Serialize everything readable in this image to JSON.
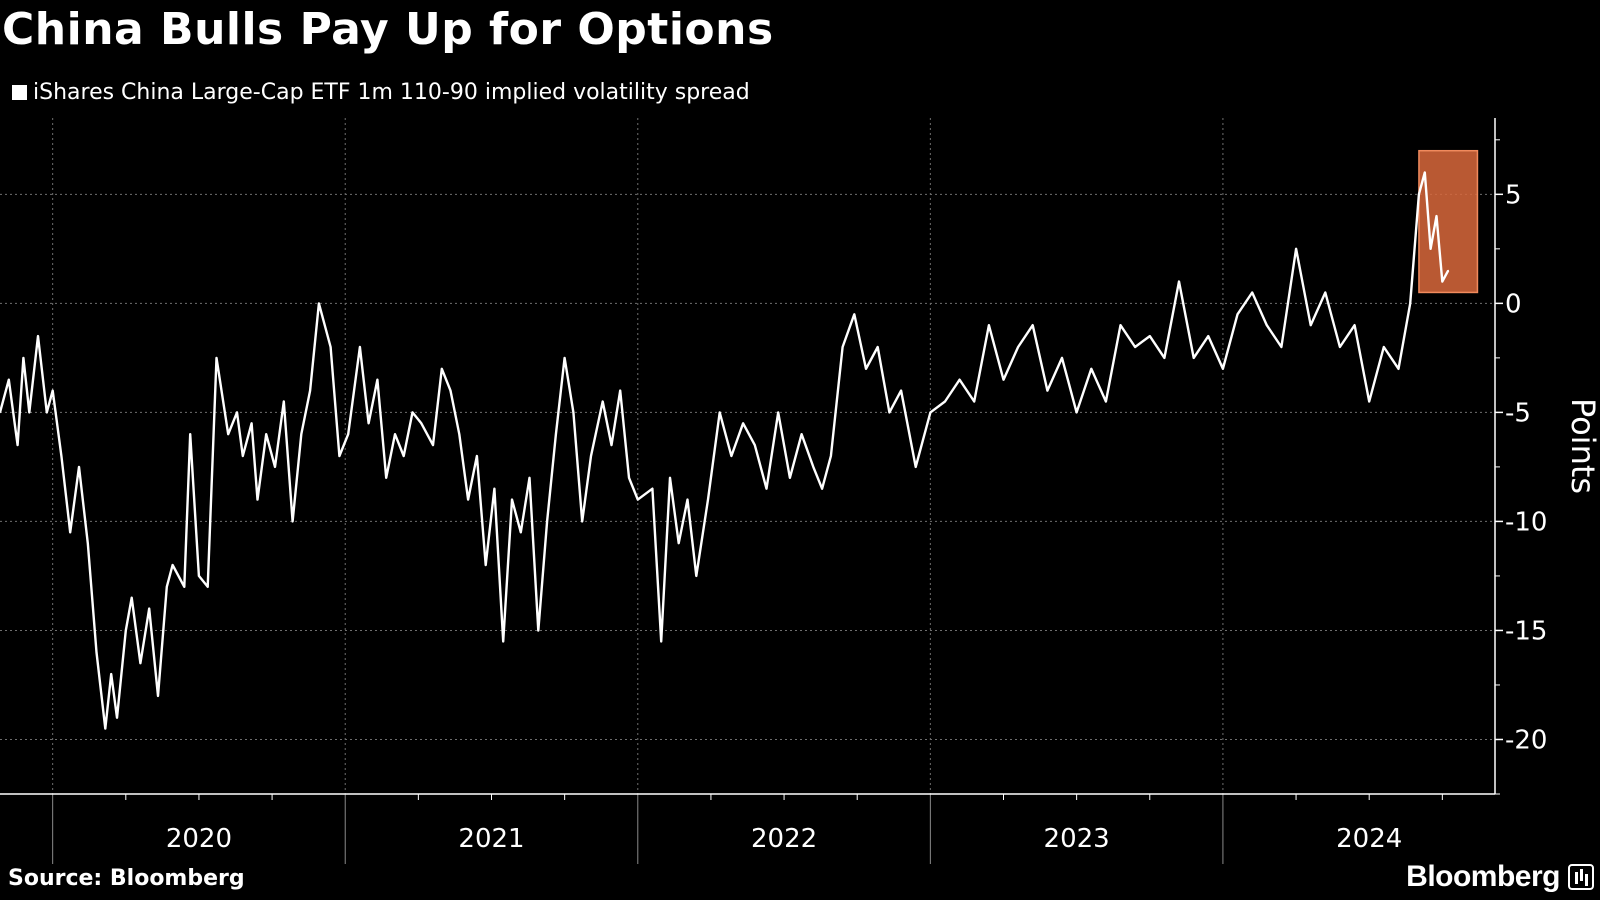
{
  "title": "China Bulls Pay Up for Options",
  "source": "Source: Bloomberg",
  "brand": "Bloomberg",
  "brand_icon": "bloomberg-terminal-icon",
  "colors": {
    "background": "#000000",
    "line": "#ffffff",
    "grid": "#6f6f6f",
    "highlight_fill": "#d9683c",
    "highlight_stroke": "#f08a5d"
  },
  "chart_data": {
    "type": "line",
    "title": "China Bulls Pay Up for Options",
    "ylabel": "Points",
    "xlabel": "",
    "ylim": [
      -22.5,
      8.5
    ],
    "yticks": [
      5,
      0,
      -5,
      -10,
      -15,
      -20
    ],
    "ytick_labels": [
      "5",
      "0",
      "-5",
      "-10",
      "-15",
      "-20"
    ],
    "xlim": [
      2019.82,
      2024.93
    ],
    "x_tick_labels": [
      "2020",
      "2021",
      "2022",
      "2023",
      "2024"
    ],
    "grid": true,
    "legend_position": "top-left",
    "highlight": {
      "x_range": [
        2024.67,
        2024.87
      ],
      "y_range": [
        0.5,
        7.0
      ]
    },
    "series": [
      {
        "name": "iShares China Large-Cap ETF 1m 110-90 implied volatility spread",
        "x": [
          2019.82,
          2019.85,
          2019.88,
          2019.9,
          2019.92,
          2019.95,
          2019.98,
          2020.0,
          2020.03,
          2020.06,
          2020.09,
          2020.12,
          2020.15,
          2020.18,
          2020.2,
          2020.22,
          2020.25,
          2020.27,
          2020.3,
          2020.33,
          2020.36,
          2020.39,
          2020.41,
          2020.45,
          2020.47,
          2020.5,
          2020.53,
          2020.56,
          2020.6,
          2020.63,
          2020.65,
          2020.68,
          2020.7,
          2020.73,
          2020.76,
          2020.79,
          2020.82,
          2020.85,
          2020.88,
          2020.91,
          2020.95,
          2020.98,
          2021.01,
          2021.05,
          2021.08,
          2021.11,
          2021.14,
          2021.17,
          2021.2,
          2021.23,
          2021.26,
          2021.3,
          2021.33,
          2021.36,
          2021.39,
          2021.42,
          2021.45,
          2021.48,
          2021.51,
          2021.54,
          2021.57,
          2021.6,
          2021.63,
          2021.66,
          2021.69,
          2021.72,
          2021.75,
          2021.78,
          2021.81,
          2021.84,
          2021.88,
          2021.91,
          2021.94,
          2021.97,
          2022.0,
          2022.05,
          2022.08,
          2022.11,
          2022.14,
          2022.17,
          2022.2,
          2022.24,
          2022.28,
          2022.32,
          2022.36,
          2022.4,
          2022.44,
          2022.48,
          2022.52,
          2022.56,
          2022.6,
          2022.63,
          2022.66,
          2022.7,
          2022.74,
          2022.78,
          2022.82,
          2022.86,
          2022.9,
          2022.95,
          2023.0,
          2023.05,
          2023.1,
          2023.15,
          2023.2,
          2023.25,
          2023.3,
          2023.35,
          2023.4,
          2023.45,
          2023.5,
          2023.55,
          2023.6,
          2023.65,
          2023.7,
          2023.75,
          2023.8,
          2023.85,
          2023.9,
          2023.95,
          2024.0,
          2024.05,
          2024.1,
          2024.15,
          2024.2,
          2024.25,
          2024.3,
          2024.35,
          2024.4,
          2024.45,
          2024.5,
          2024.55,
          2024.6,
          2024.64,
          2024.67,
          2024.69,
          2024.71,
          2024.73,
          2024.75,
          2024.77
        ],
        "y": [
          -5.0,
          -3.5,
          -6.5,
          -2.5,
          -5.0,
          -1.5,
          -5.0,
          -4.0,
          -7.0,
          -10.5,
          -7.5,
          -11.0,
          -16.0,
          -19.5,
          -17.0,
          -19.0,
          -15.0,
          -13.5,
          -16.5,
          -14.0,
          -18.0,
          -13.0,
          -12.0,
          -13.0,
          -6.0,
          -12.5,
          -13.0,
          -2.5,
          -6.0,
          -5.0,
          -7.0,
          -5.5,
          -9.0,
          -6.0,
          -7.5,
          -4.5,
          -10.0,
          -6.0,
          -4.0,
          0.0,
          -2.0,
          -7.0,
          -6.0,
          -2.0,
          -5.5,
          -3.5,
          -8.0,
          -6.0,
          -7.0,
          -5.0,
          -5.5,
          -6.5,
          -3.0,
          -4.0,
          -6.0,
          -9.0,
          -7.0,
          -12.0,
          -8.5,
          -15.5,
          -9.0,
          -10.5,
          -8.0,
          -15.0,
          -10.0,
          -6.0,
          -2.5,
          -5.0,
          -10.0,
          -7.0,
          -4.5,
          -6.5,
          -4.0,
          -8.0,
          -9.0,
          -8.5,
          -15.5,
          -8.0,
          -11.0,
          -9.0,
          -12.5,
          -9.0,
          -5.0,
          -7.0,
          -5.5,
          -6.5,
          -8.5,
          -5.0,
          -8.0,
          -6.0,
          -7.5,
          -8.5,
          -7.0,
          -2.0,
          -0.5,
          -3.0,
          -2.0,
          -5.0,
          -4.0,
          -7.5,
          -5.0,
          -4.5,
          -3.5,
          -4.5,
          -1.0,
          -3.5,
          -2.0,
          -1.0,
          -4.0,
          -2.5,
          -5.0,
          -3.0,
          -4.5,
          -1.0,
          -2.0,
          -1.5,
          -2.5,
          1.0,
          -2.5,
          -1.5,
          -3.0,
          -0.5,
          0.5,
          -1.0,
          -2.0,
          2.5,
          -1.0,
          0.5,
          -2.0,
          -1.0,
          -4.5,
          -2.0,
          -3.0,
          0.0,
          5.0,
          6.0,
          2.5,
          4.0,
          1.0,
          1.5
        ]
      }
    ]
  }
}
